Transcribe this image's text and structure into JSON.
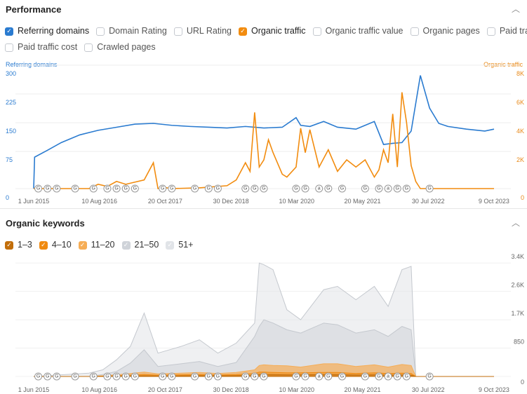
{
  "performance": {
    "title": "Performance",
    "checkboxes": [
      {
        "label": "Referring domains",
        "checked": true,
        "color": "#2a7bd0"
      },
      {
        "label": "Domain Rating",
        "checked": false
      },
      {
        "label": "URL Rating",
        "checked": false
      },
      {
        "label": "Organic traffic",
        "checked": true,
        "color": "#f28c0f"
      },
      {
        "label": "Organic traffic value",
        "checked": false
      },
      {
        "label": "Organic pages",
        "checked": false
      },
      {
        "label": "Paid traffic",
        "checked": false
      },
      {
        "label": "Paid traffic cost",
        "checked": false
      },
      {
        "label": "Crawled pages",
        "checked": false
      }
    ]
  },
  "keywords": {
    "title": "Organic keywords",
    "checkboxes": [
      {
        "label": "1–3",
        "checked": true,
        "color": "#c26e0b"
      },
      {
        "label": "4–10",
        "checked": true,
        "color": "#f08a10"
      },
      {
        "label": "11–20",
        "checked": true,
        "color": "#f6ad55"
      },
      {
        "label": "21–50",
        "checked": true,
        "color": "#cfd3d9"
      },
      {
        "label": "51+",
        "checked": true,
        "color": "#e1e4e8"
      }
    ]
  },
  "chart_data": [
    {
      "type": "line",
      "left_axis_label": "Referring domains",
      "right_axis_label": "Organic traffic",
      "x_ticks": [
        "1 Jun 2015",
        "10 Aug 2016",
        "20 Oct 2017",
        "30 Dec 2018",
        "10 Mar 2020",
        "20 May 2021",
        "30 Jul 2022",
        "9 Oct 2023"
      ],
      "x_unit": "months since Jun 2015",
      "y_left_ticks": [
        "0",
        "75",
        "150",
        "225",
        "300"
      ],
      "y_left_range": [
        0,
        300
      ],
      "y_right_ticks": [
        "0",
        "2K",
        "4K",
        "6K",
        "8K"
      ],
      "y_right_range": [
        0,
        8000
      ],
      "series": [
        {
          "name": "Referring domains",
          "axis": "left",
          "color": "#2a7bd0",
          "x": [
            0,
            0.2,
            3,
            6,
            10,
            14,
            18,
            22,
            26,
            30,
            34,
            38,
            42,
            46,
            50,
            54,
            57,
            58,
            60,
            63,
            66,
            70,
            72,
            74,
            76,
            78,
            80,
            82,
            84,
            86,
            88,
            90,
            94,
            98,
            100
          ],
          "y": [
            0,
            82,
            100,
            120,
            140,
            152,
            160,
            168,
            170,
            165,
            162,
            160,
            158,
            162,
            158,
            160,
            185,
            165,
            162,
            175,
            160,
            155,
            165,
            175,
            115,
            118,
            120,
            150,
            295,
            210,
            170,
            162,
            155,
            150,
            155
          ]
        },
        {
          "name": "Organic traffic",
          "axis": "right",
          "color": "#f28c0f",
          "x": [
            0,
            12,
            14,
            16,
            18,
            20,
            24,
            26,
            27,
            28,
            30,
            36,
            42,
            44,
            46,
            47,
            48,
            49,
            50,
            51,
            52,
            54,
            55,
            57,
            58,
            59,
            60,
            62,
            64,
            66,
            68,
            70,
            72,
            74,
            75,
            76,
            77,
            78,
            79,
            80,
            81,
            82,
            83,
            84,
            100
          ],
          "y": [
            0,
            0,
            300,
            150,
            500,
            300,
            600,
            1800,
            0,
            100,
            0,
            50,
            200,
            600,
            1800,
            1200,
            5300,
            1500,
            2000,
            3400,
            2500,
            1000,
            800,
            1500,
            4200,
            2500,
            4100,
            1500,
            2700,
            1200,
            2000,
            1500,
            2000,
            800,
            1300,
            2700,
            1800,
            5200,
            1500,
            6700,
            4600,
            1600,
            500,
            0,
            0
          ]
        }
      ]
    },
    {
      "type": "area",
      "stacked": true,
      "right_axis_ticks": [
        "0",
        "850",
        "1.7K",
        "2.6K",
        "3.4K"
      ],
      "y_range": [
        0,
        3400
      ],
      "x_ticks": [
        "1 Jun 2015",
        "10 Aug 2016",
        "20 Oct 2017",
        "30 Dec 2018",
        "10 Mar 2020",
        "20 May 2021",
        "30 Jul 2022",
        "9 Oct 2023"
      ],
      "x": [
        0,
        12,
        15,
        18,
        21,
        24,
        27,
        32,
        36,
        40,
        44,
        48,
        49,
        50,
        52,
        55,
        58,
        63,
        66,
        70,
        74,
        77,
        80,
        82,
        83,
        100
      ],
      "series": [
        {
          "name": "1–3",
          "color": "#c26e0b",
          "values": [
            0,
            0,
            5,
            10,
            15,
            20,
            15,
            20,
            25,
            20,
            25,
            40,
            60,
            60,
            55,
            50,
            50,
            55,
            55,
            45,
            50,
            40,
            45,
            40,
            0,
            0
          ]
        },
        {
          "name": "4–10",
          "color": "#f08a10",
          "values": [
            0,
            0,
            10,
            25,
            40,
            60,
            40,
            50,
            60,
            45,
            60,
            90,
            130,
            130,
            120,
            110,
            110,
            120,
            120,
            90,
            110,
            90,
            100,
            90,
            0,
            0
          ]
        },
        {
          "name": "11–20",
          "color": "#f6ad55",
          "values": [
            0,
            0,
            20,
            50,
            90,
            130,
            80,
            100,
            120,
            90,
            120,
            200,
            330,
            350,
            330,
            320,
            280,
            380,
            380,
            300,
            350,
            280,
            360,
            330,
            0,
            0
          ]
        },
        {
          "name": "21–50",
          "color": "#cfd3d9",
          "values": [
            0,
            0,
            60,
            150,
            400,
            800,
            300,
            380,
            450,
            300,
            420,
            1200,
            1500,
            1700,
            1600,
            1400,
            1300,
            1600,
            1550,
            1300,
            1400,
            1200,
            1500,
            1400,
            0,
            0
          ]
        },
        {
          "name": "51+",
          "color": "#e1e4e8",
          "values": [
            0,
            100,
            200,
            500,
            900,
            1900,
            700,
            900,
            1100,
            700,
            1000,
            1600,
            3400,
            3350,
            3200,
            2000,
            1700,
            2600,
            2700,
            2300,
            2700,
            2100,
            3200,
            3300,
            0,
            0
          ]
        }
      ]
    }
  ],
  "annotations": {
    "marks": [
      "G",
      "G",
      "G",
      "G",
      "G",
      "G",
      "G",
      "G",
      "G",
      "G",
      "G",
      "G",
      "G",
      "G",
      "G",
      "G",
      "G",
      "G",
      "G",
      "a",
      "G",
      "G",
      "G",
      "G",
      "a",
      "G",
      "G",
      "G"
    ],
    "months": [
      1,
      3,
      5,
      9,
      13,
      16,
      18,
      20,
      22,
      28,
      30,
      35,
      38,
      40,
      46,
      48,
      50,
      57,
      59,
      62,
      64,
      67,
      72,
      75,
      77,
      79,
      81,
      86
    ]
  }
}
